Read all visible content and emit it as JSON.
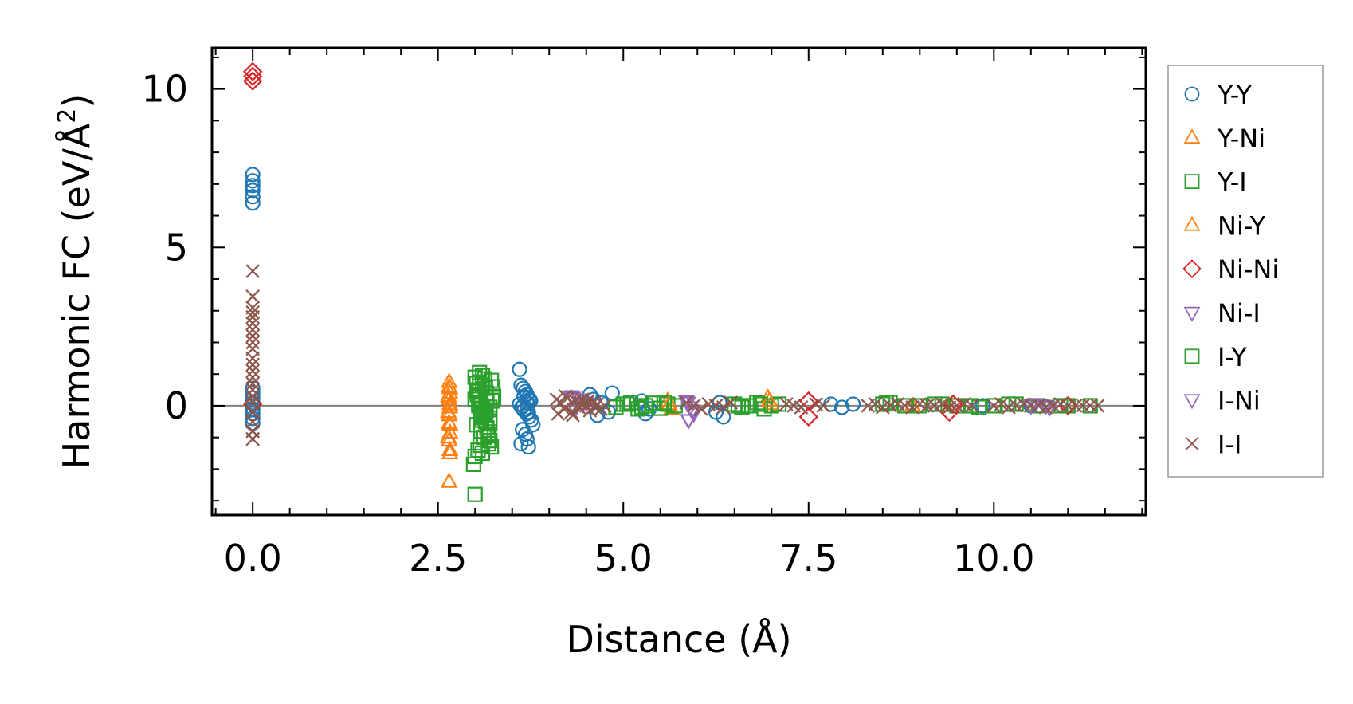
{
  "chart_data": {
    "type": "scatter",
    "title": "",
    "xlabel": "Distance (Å)",
    "ylabel_prefix": "Harmonic FC (eV/Å",
    "ylabel_sup": "2",
    "ylabel_suffix": ")",
    "xlim": [
      -0.55,
      12.05
    ],
    "ylim": [
      -3.45,
      11.3
    ],
    "x_ticks": [
      0.0,
      2.5,
      5.0,
      7.5,
      10.0
    ],
    "x_tick_labels": [
      "0.0",
      "2.5",
      "5.0",
      "7.5",
      "10.0"
    ],
    "y_ticks": [
      0,
      5,
      10
    ],
    "y_tick_labels": [
      "0",
      "5",
      "10"
    ],
    "zero_line": 0,
    "legend_position": "right-outside",
    "grid": false,
    "series": [
      {
        "name": "Y-Y",
        "marker": "circle",
        "color": "#1f77b4",
        "x": [
          0,
          0,
          0,
          0,
          0,
          0,
          0,
          0,
          0,
          0,
          0,
          0,
          0,
          0,
          3.6,
          3.62,
          3.65,
          3.68,
          3.7,
          3.72,
          3.75,
          3.6,
          3.63,
          3.66,
          3.7,
          3.73,
          3.76,
          3.78,
          3.64,
          3.68,
          3.7,
          3.62,
          3.72,
          3.66,
          3.74,
          3.7,
          3.65,
          3.7,
          3.72,
          4.55,
          4.6,
          4.7,
          4.8,
          4.85,
          4.65,
          5.25,
          5.3,
          5.35,
          6.3,
          6.35,
          6.25,
          7.8,
          7.95,
          8.1,
          9.85,
          10.5
        ],
        "y": [
          7.3,
          7.1,
          6.95,
          6.8,
          6.6,
          6.4,
          0.55,
          0.4,
          0.25,
          0.1,
          -0.1,
          -0.25,
          -0.4,
          -0.55,
          1.15,
          0.65,
          0.55,
          0.45,
          0.35,
          0.25,
          0.15,
          0.05,
          -0.05,
          -0.15,
          -0.25,
          -0.35,
          -0.45,
          -0.6,
          -0.75,
          -0.9,
          -1.05,
          -1.2,
          -1.3,
          0.3,
          0.2,
          -0.1,
          0.0,
          0.1,
          -0.2,
          0.35,
          0.2,
          0.1,
          -0.2,
          0.4,
          -0.3,
          0.15,
          -0.25,
          -0.1,
          0.1,
          -0.35,
          -0.2,
          0.05,
          -0.05,
          0.05,
          0.0,
          0.0
        ]
      },
      {
        "name": "Y-Ni",
        "marker": "triangle-up",
        "color": "#ff7f0e",
        "x": [
          2.65,
          2.65,
          2.66,
          2.65,
          2.66,
          2.65,
          2.65,
          2.66,
          2.65,
          2.66,
          2.65,
          5.6,
          5.65,
          6.95,
          7.0,
          8.9
        ],
        "y": [
          0.75,
          0.6,
          0.4,
          0.2,
          -0.05,
          -0.3,
          -0.55,
          -0.85,
          -1.1,
          -1.5,
          -2.4,
          0.15,
          -0.1,
          0.25,
          0.05,
          0.0
        ]
      },
      {
        "name": "Y-I",
        "marker": "square",
        "color": "#2ca02c",
        "x": [
          3.0,
          3.02,
          3.04,
          3.06,
          3.08,
          3.1,
          3.12,
          3.14,
          3.16,
          3.18,
          3.2,
          3.22,
          3.24,
          3.0,
          3.05,
          3.1,
          3.15,
          3.2,
          3.25,
          3.02,
          3.08,
          3.12,
          3.18,
          3.22,
          3.04,
          3.1,
          3.16,
          3.2,
          3.0,
          3.06,
          3.1,
          2.98,
          3.0,
          3.02,
          3.08,
          3.14,
          3.2,
          3.1,
          3.05,
          3.15,
          3.25,
          3.12,
          3.06,
          4.9,
          5.0,
          5.1,
          5.2,
          5.3,
          5.4,
          5.5,
          5.6,
          5.7,
          6.5,
          6.6,
          6.7,
          6.8,
          6.9,
          7.0,
          7.1,
          8.5,
          8.6,
          9.0,
          9.2,
          9.5,
          9.8,
          10.0,
          10.3,
          10.6,
          11.0,
          11.3
        ],
        "y": [
          0.9,
          0.7,
          0.5,
          0.3,
          0.1,
          -0.1,
          -0.3,
          -0.5,
          -0.7,
          -0.9,
          -1.1,
          -1.3,
          0.6,
          0.2,
          0.0,
          -0.2,
          0.4,
          -0.4,
          0.3,
          -0.6,
          -0.8,
          -1.0,
          -1.2,
          0.8,
          -1.4,
          -1.5,
          0.15,
          -0.05,
          -1.6,
          1.05,
          0.95,
          -1.85,
          -2.8,
          0.45,
          -0.35,
          0.55,
          -0.55,
          0.65,
          0.05,
          -0.15,
          0.25,
          -0.25,
          0.75,
          -0.05,
          0.05,
          0.1,
          -0.1,
          0.0,
          0.08,
          -0.08,
          0.05,
          0.0,
          0.05,
          -0.05,
          0.0,
          0.1,
          -0.1,
          0.0,
          0.05,
          0.05,
          0.1,
          0.0,
          0.05,
          0.0,
          -0.05,
          0.0,
          0.05,
          0.0,
          0.0,
          0.0
        ]
      },
      {
        "name": "Ni-Y",
        "marker": "triangle-up",
        "color": "#ff7f0e",
        "x": [
          2.66,
          2.64,
          2.66,
          2.64,
          2.66,
          2.64,
          2.66,
          5.62,
          6.97
        ],
        "y": [
          0.55,
          0.3,
          0.05,
          -0.2,
          -0.6,
          -1.0,
          -1.4,
          0.05,
          0.15
        ]
      },
      {
        "name": "Ni-Ni",
        "marker": "diamond",
        "color": "#d62728",
        "x": [
          0,
          0,
          0,
          0,
          7.5,
          7.5,
          9.4,
          9.45,
          11.0
        ],
        "y": [
          10.55,
          10.4,
          10.25,
          0.05,
          0.15,
          -0.35,
          -0.2,
          0.05,
          0.0
        ]
      },
      {
        "name": "Ni-I",
        "marker": "triangle-down",
        "color": "#9467bd",
        "x": [
          4.3,
          4.4,
          4.5,
          4.35,
          5.85,
          5.9,
          5.95,
          5.88,
          10.5,
          10.7
        ],
        "y": [
          0.3,
          0.2,
          0.1,
          -0.1,
          0.15,
          -0.05,
          -0.25,
          -0.45,
          0.0,
          0.0
        ]
      },
      {
        "name": "I-Y",
        "marker": "square",
        "color": "#2ca02c",
        "x": [
          3.03,
          3.09,
          3.13,
          3.19,
          3.23,
          3.07,
          5.05,
          5.25,
          5.55,
          6.55,
          6.85,
          8.55,
          8.8,
          9.3,
          9.7,
          10.2,
          10.9
        ],
        "y": [
          0.35,
          -0.45,
          0.85,
          -0.95,
          0.15,
          -1.25,
          0.05,
          -0.05,
          0.1,
          0.0,
          0.05,
          0.1,
          0.0,
          0.05,
          0.0,
          0.05,
          0.0
        ]
      },
      {
        "name": "I-Ni",
        "marker": "triangle-down",
        "color": "#9467bd",
        "x": [
          4.32,
          4.45,
          5.87,
          5.93,
          10.55,
          10.75
        ],
        "y": [
          0.25,
          0.05,
          0.1,
          -0.15,
          0.05,
          -0.05
        ]
      },
      {
        "name": "I-I",
        "marker": "x",
        "color": "#8c564b",
        "x": [
          0,
          0,
          0,
          0,
          0,
          0,
          0,
          0,
          0,
          0,
          0,
          0,
          0,
          0,
          0,
          0,
          0,
          0,
          0,
          0,
          0,
          0,
          4.1,
          4.15,
          4.2,
          4.25,
          4.3,
          4.35,
          4.4,
          4.45,
          4.5,
          4.55,
          4.6,
          4.65,
          4.7,
          4.75,
          4.12,
          4.22,
          4.32,
          4.42,
          4.52,
          4.62,
          5.85,
          5.95,
          6.05,
          6.15,
          6.25,
          6.35,
          6.45,
          7.2,
          7.3,
          7.4,
          7.6,
          7.7,
          8.3,
          8.4,
          8.5,
          8.6,
          8.7,
          8.8,
          8.9,
          9.0,
          9.1,
          9.2,
          9.3,
          9.4,
          9.5,
          9.6,
          9.7,
          10.0,
          10.1,
          10.2,
          10.3,
          10.4,
          10.5,
          10.6,
          10.7,
          10.8,
          10.9,
          11.0,
          11.1,
          11.2,
          11.3,
          11.4
        ],
        "y": [
          4.25,
          3.45,
          3.1,
          2.95,
          2.8,
          2.6,
          2.4,
          2.2,
          2.0,
          1.8,
          1.5,
          1.3,
          1.1,
          0.9,
          0.7,
          0.5,
          0.3,
          0.1,
          -0.2,
          -0.5,
          -0.8,
          -1.05,
          0.2,
          0.1,
          -0.1,
          0.25,
          -0.2,
          0.15,
          -0.05,
          0.2,
          0.0,
          -0.15,
          0.1,
          0.05,
          -0.1,
          0.0,
          -0.25,
          0.3,
          -0.3,
          0.1,
          0.15,
          -0.05,
          0.1,
          0.0,
          -0.1,
          0.05,
          0.0,
          -0.05,
          0.1,
          0.05,
          0.0,
          -0.05,
          0.05,
          0.0,
          0.0,
          0.05,
          -0.05,
          0.0,
          0.05,
          0.0,
          -0.05,
          0.05,
          0.0,
          0.0,
          0.05,
          -0.05,
          0.0,
          0.05,
          0.0,
          0.0,
          0.05,
          -0.05,
          0.0,
          0.05,
          0.0,
          0.0,
          -0.05,
          0.0,
          0.05,
          0.0,
          0.0,
          0.0,
          0.0,
          0.0
        ]
      }
    ]
  }
}
